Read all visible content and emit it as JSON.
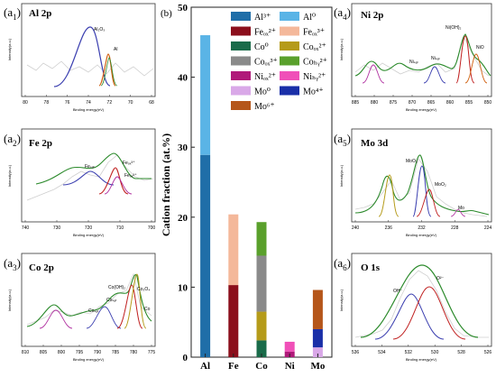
{
  "chart_data": [
    {
      "panel": "b",
      "type": "bar",
      "ylabel": "Cation fraction (at.%)",
      "ylim": [
        0,
        50
      ],
      "yticks": [
        0,
        10,
        20,
        30,
        40,
        50
      ],
      "categories": [
        "Al",
        "Fe",
        "Co",
        "Ni",
        "Mo"
      ],
      "legend": [
        {
          "label": "Al³⁺",
          "color": "#1f6ea8"
        },
        {
          "label": "Al⁰",
          "color": "#5ab4e6"
        },
        {
          "label": "Feₒₓ²⁺",
          "color": "#8b0f1c"
        },
        {
          "label": "Feₒₓ³⁺",
          "color": "#f4b89a"
        },
        {
          "label": "Co⁰",
          "color": "#1a6b4a"
        },
        {
          "label": "Coₒₓ²⁺",
          "color": "#b59b1a"
        },
        {
          "label": "Coₒₓ³⁺",
          "color": "#8a8a8a"
        },
        {
          "label": "Coₕᵧ²⁺",
          "color": "#5aa02c"
        },
        {
          "label": "Niₒₓ²⁺",
          "color": "#b01a7a"
        },
        {
          "label": "Niₕᵧ²⁺",
          "color": "#f050b8"
        },
        {
          "label": "Mo⁰",
          "color": "#d9a8e8"
        },
        {
          "label": "Mo⁴⁺",
          "color": "#1a2fa8"
        },
        {
          "label": "Mo⁶⁺",
          "color": "#b5561a"
        }
      ],
      "stacks": [
        {
          "category": "Al",
          "segments": [
            {
              "label": "Al³⁺",
              "value": 28.9,
              "color": "#1f6ea8"
            },
            {
              "label": "Al⁰",
              "value": 17.1,
              "color": "#5ab4e6"
            }
          ]
        },
        {
          "category": "Fe",
          "segments": [
            {
              "label": "Feₒₓ²⁺",
              "value": 10.3,
              "color": "#8b0f1c"
            },
            {
              "label": "Feₒₓ³⁺",
              "value": 10.1,
              "color": "#f4b89a"
            }
          ]
        },
        {
          "category": "Co",
          "segments": [
            {
              "label": "Co⁰",
              "value": 2.4,
              "color": "#1a6b4a"
            },
            {
              "label": "Coₒₓ²⁺",
              "value": 4.1,
              "color": "#b59b1a"
            },
            {
              "label": "Coₒₓ³⁺",
              "value": 8.0,
              "color": "#8a8a8a"
            },
            {
              "label": "Coₕᵧ²⁺",
              "value": 4.8,
              "color": "#5aa02c"
            }
          ]
        },
        {
          "category": "Ni",
          "segments": [
            {
              "label": "Niₒₓ²⁺",
              "value": 0.8,
              "color": "#b01a7a"
            },
            {
              "label": "Niₕᵧ²⁺",
              "value": 1.4,
              "color": "#f050b8"
            }
          ]
        },
        {
          "category": "Mo",
          "segments": [
            {
              "label": "Mo⁰",
              "value": 1.4,
              "color": "#d9a8e8"
            },
            {
              "label": "Mo⁴⁺",
              "value": 2.6,
              "color": "#1a2fa8"
            },
            {
              "label": "Mo⁶⁺",
              "value": 5.6,
              "color": "#b5561a"
            }
          ]
        }
      ]
    },
    {
      "panel": "a1",
      "type": "line",
      "title": "Al 2p",
      "xlabel": "Binding energy(eV)",
      "ylabel": "Intensity(a.u.)",
      "xticks": [
        "80",
        "78",
        "76",
        "74",
        "72",
        "70",
        "68"
      ],
      "annotations": [
        "Al₂O₃",
        "Al"
      ]
    },
    {
      "panel": "a2",
      "type": "line",
      "title": "Fe 2p",
      "xlabel": "Binding energy(eV)",
      "ylabel": "Intensity(a.u.)",
      "xticks": [
        "740",
        "730",
        "720",
        "710",
        "700"
      ],
      "annotations": [
        "Feₛₐₜ",
        "Feₒₓ³⁺",
        "Feₒₓ²⁺"
      ]
    },
    {
      "panel": "a3",
      "type": "line",
      "title": "Co 2p",
      "xlabel": "Binding energy(eV)",
      "ylabel": "Intensity(a.u.)",
      "xticks": [
        "810",
        "805",
        "800",
        "795",
        "790",
        "785",
        "780",
        "775"
      ],
      "annotations": [
        "Co(OH)₂",
        "Co₃O₄",
        "Coₛₐₜ",
        "Coₛₐₜ",
        "Co"
      ]
    },
    {
      "panel": "a4",
      "type": "line",
      "title": "Ni 2p",
      "xlabel": "Binding energy(eV)",
      "ylabel": "Intensity(a.u.)",
      "xticks": [
        "885",
        "880",
        "875",
        "870",
        "865",
        "860",
        "855",
        "850"
      ],
      "annotations": [
        "Ni(OH)₂",
        "NiO",
        "Niₛₐₜ",
        "Niₛₐₜ"
      ]
    },
    {
      "panel": "a5",
      "type": "line",
      "title": "Mo 3d",
      "xlabel": "Binding energy(eV)",
      "ylabel": "Intensity(a.u.)",
      "xticks": [
        "240",
        "236",
        "232",
        "228",
        "224"
      ],
      "annotations": [
        "MoO₃",
        "MoO₂",
        "Mo"
      ]
    },
    {
      "panel": "a6",
      "type": "line",
      "title": "O 1s",
      "xlabel": "Binding energy(eV)",
      "ylabel": "Intensity(a.u.)",
      "xticks": [
        "536",
        "534",
        "532",
        "530",
        "528",
        "526"
      ],
      "annotations": [
        "OH⁻",
        "O²⁻"
      ]
    }
  ],
  "labels": {
    "a1": "(a",
    "a1_sub": "1",
    "a2": "(a",
    "a2_sub": "2",
    "a3": "(a",
    "a3_sub": "3",
    "a4": "(a",
    "a4_sub": "4",
    "a5": "(a",
    "a5_sub": "5",
    "a6": "(a",
    "a6_sub": "6",
    "b": "(b)"
  }
}
